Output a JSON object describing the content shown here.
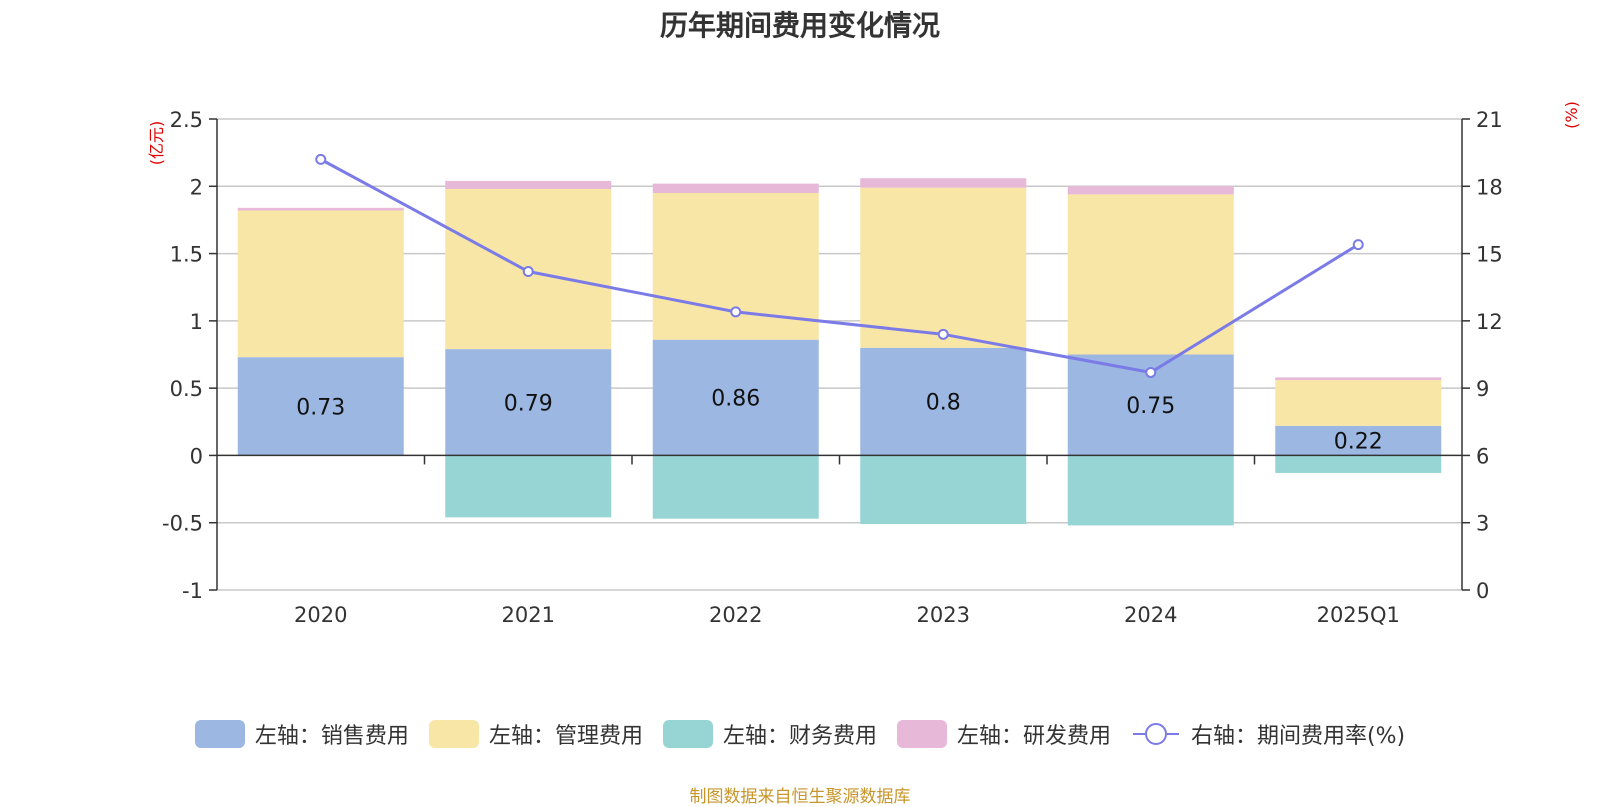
{
  "title": "历年期间费用变化情况",
  "source": "制图数据来自恒生聚源数据库",
  "colors": {
    "sales": "#9bb7e2",
    "admin": "#f8e6a6",
    "finance": "#97d4d4",
    "rd": "#e8b8d9",
    "rate": "#7b7be8",
    "unit": "#e00000",
    "grid": "#c8c8c8",
    "axis": "#333333"
  },
  "chart_data": {
    "type": "bar",
    "categories": [
      "2020",
      "2021",
      "2022",
      "2023",
      "2024",
      "2025Q1"
    ],
    "series": [
      {
        "name": "左轴：销售费用",
        "key": "sales",
        "axis": "left",
        "stack": true,
        "values": [
          0.73,
          0.79,
          0.86,
          0.8,
          0.75,
          0.22
        ],
        "labels": [
          "0.73",
          "0.79",
          "0.86",
          "0.8",
          "0.75",
          "0.22"
        ]
      },
      {
        "name": "左轴：管理费用",
        "key": "admin",
        "axis": "left",
        "stack": true,
        "values": [
          1.09,
          1.19,
          1.09,
          1.19,
          1.19,
          0.34
        ]
      },
      {
        "name": "左轴：财务费用",
        "key": "finance",
        "axis": "left",
        "stack": true,
        "values": [
          0.0,
          -0.46,
          -0.47,
          -0.51,
          -0.52,
          -0.13
        ]
      },
      {
        "name": "左轴：研发费用",
        "key": "rd",
        "axis": "left",
        "stack": true,
        "values": [
          0.02,
          0.06,
          0.07,
          0.07,
          0.06,
          0.02
        ]
      },
      {
        "name": "右轴：期间费用率(%)",
        "key": "rate",
        "axis": "right",
        "type": "line",
        "values": [
          19.2,
          14.2,
          12.4,
          11.4,
          9.7,
          15.4
        ]
      }
    ],
    "y_left": {
      "label": "(亿元)",
      "min": -1,
      "max": 2.5,
      "ticks": [
        -1,
        -0.5,
        0,
        0.5,
        1,
        1.5,
        2,
        2.5
      ],
      "tick_labels": [
        "-1",
        "-0.5",
        "0",
        "0.5",
        "1",
        "1.5",
        "2",
        "2.5"
      ]
    },
    "y_right": {
      "label": "(%)",
      "min": 0,
      "max": 21,
      "ticks": [
        0,
        3,
        6,
        9,
        12,
        15,
        18,
        21
      ],
      "tick_labels": [
        "0",
        "3",
        "6",
        "9",
        "12",
        "15",
        "18",
        "21"
      ]
    },
    "grid": true,
    "legend_position": "bottom"
  }
}
